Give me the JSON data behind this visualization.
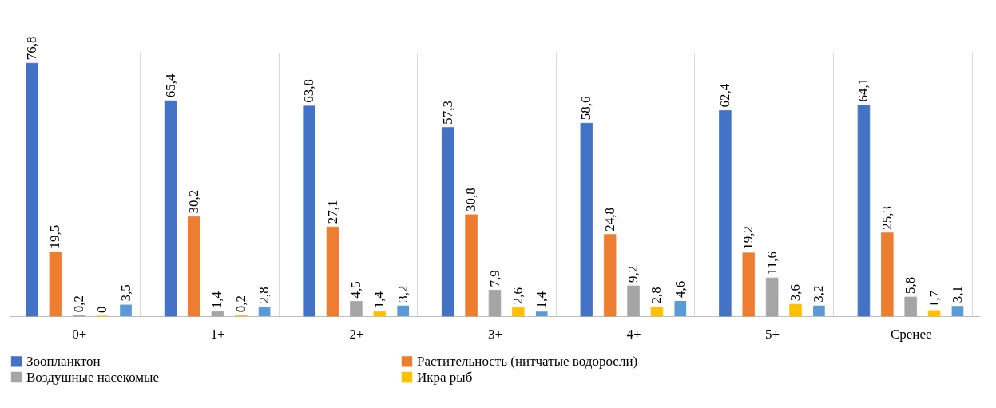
{
  "chart_data": {
    "type": "bar",
    "categories": [
      "0+",
      "1+",
      "2+",
      "3+",
      "4+",
      "5+",
      "Сренее"
    ],
    "series": [
      {
        "name": "Зоопланктон",
        "color": "#4472c4",
        "values": [
          76.8,
          65.4,
          63.8,
          57.3,
          58.6,
          62.4,
          64.1
        ],
        "value_labels": [
          "76,8",
          "65,4",
          "63,8",
          "57,3",
          "58,6",
          "62,4",
          "64,1"
        ]
      },
      {
        "name": "Растительность (нитчатые водоросли)",
        "color": "#ed7d31",
        "values": [
          19.5,
          30.2,
          27.1,
          30.8,
          24.8,
          19.2,
          25.3
        ],
        "value_labels": [
          "19,5",
          "30,2",
          "27,1",
          "30,8",
          "24,8",
          "19,2",
          "25,3"
        ]
      },
      {
        "name": "Воздушные насекомые",
        "color": "#a5a5a5",
        "values": [
          0.2,
          1.4,
          4.5,
          7.9,
          9.2,
          11.6,
          5.8
        ],
        "value_labels": [
          "0,2",
          "1,4",
          "4,5",
          "7,9",
          "9,2",
          "11,6",
          "5,8"
        ]
      },
      {
        "name": "Икра рыб",
        "color": "#ffc000",
        "values": [
          0,
          0.2,
          1.4,
          2.6,
          2.8,
          3.6,
          1.7
        ],
        "value_labels": [
          "0",
          "0,2",
          "1,4",
          "2,6",
          "2,8",
          "3,6",
          "1,7"
        ]
      },
      {
        "color": "#5b9bd5",
        "values": [
          3.5,
          2.8,
          3.2,
          1.4,
          4.6,
          3.2,
          3.1
        ],
        "value_labels": [
          "3,5",
          "2,8",
          "3,2",
          "1,4",
          "4,6",
          "3,2",
          "3,1"
        ]
      }
    ],
    "grid": "x",
    "legend": "bottom",
    "tick_labels": "x"
  }
}
